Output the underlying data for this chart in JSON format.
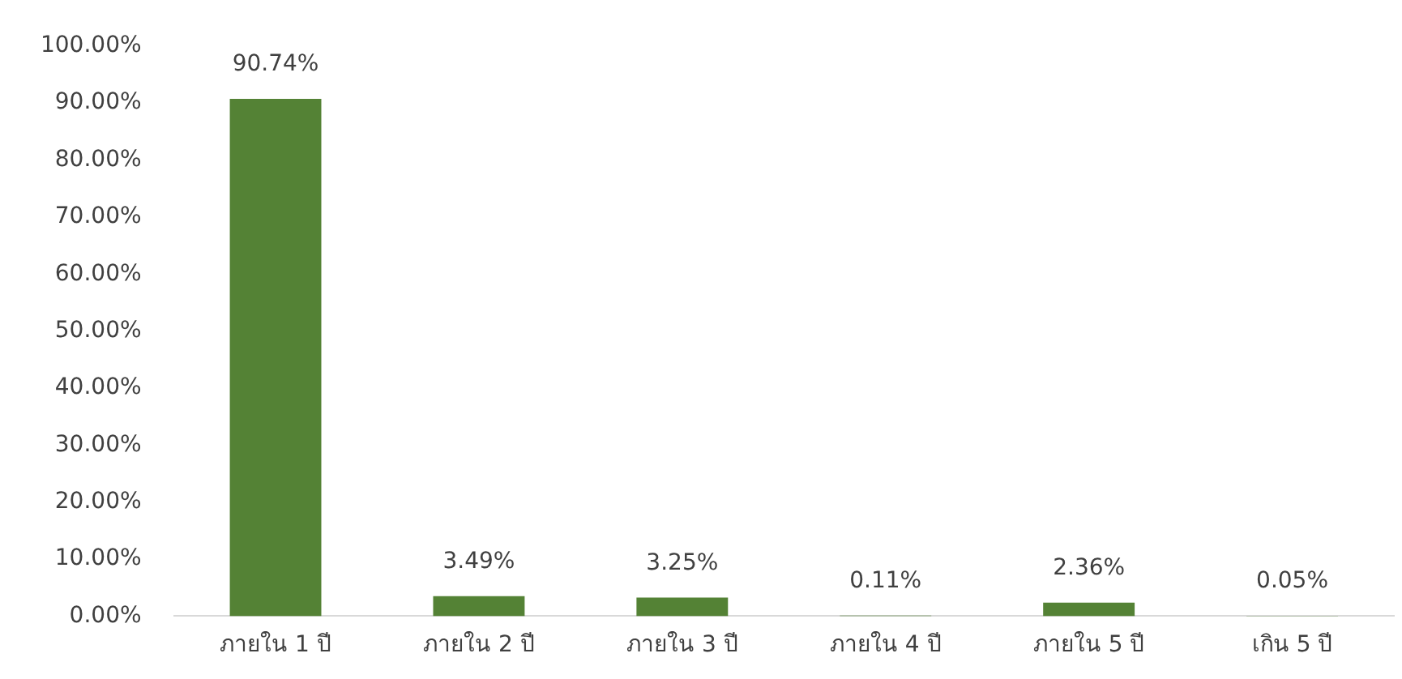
{
  "chart_data": {
    "type": "bar",
    "categories": [
      "ภายใน 1 ปี",
      "ภายใน 2 ปี",
      "ภายใน 3 ปี",
      "ภายใน 4 ปี",
      "ภายใน 5 ปี",
      "เกิน 5 ปี"
    ],
    "values": [
      90.74,
      3.49,
      3.25,
      0.11,
      2.36,
      0.05
    ],
    "value_labels": [
      "90.74%",
      "3.49%",
      "3.25%",
      "0.11%",
      "2.36%",
      "0.05%"
    ],
    "color": "#548235",
    "ylim": [
      0,
      100
    ],
    "yticks": [
      {
        "value": 0,
        "label": "0.00%"
      },
      {
        "value": 10,
        "label": "10.00%"
      },
      {
        "value": 20,
        "label": "20.00%"
      },
      {
        "value": 30,
        "label": "30.00%"
      },
      {
        "value": 40,
        "label": "40.00%"
      },
      {
        "value": 50,
        "label": "50.00%"
      },
      {
        "value": 60,
        "label": "60.00%"
      },
      {
        "value": 70,
        "label": "70.00%"
      },
      {
        "value": 80,
        "label": "80.00%"
      },
      {
        "value": 90,
        "label": "90.00%"
      },
      {
        "value": 100,
        "label": "100.00%"
      }
    ],
    "grid": false,
    "legend": false
  }
}
